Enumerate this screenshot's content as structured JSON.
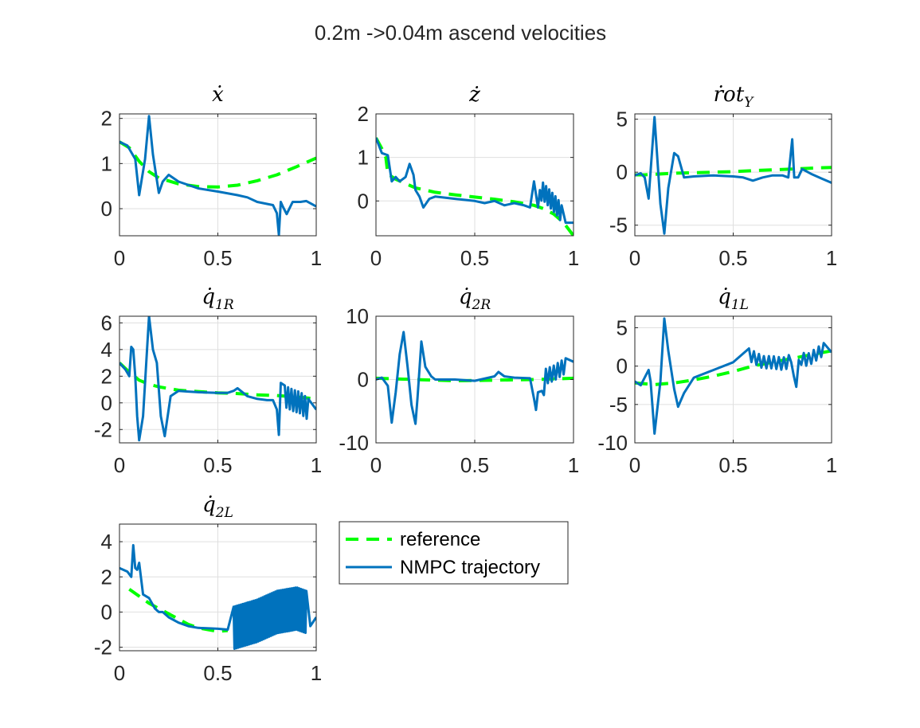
{
  "figure_title": "0.2m ->0.04m ascend velocities",
  "colors": {
    "reference": "#00FF00",
    "nmpc": "#0072BD",
    "axis": "#262626",
    "grid": "#DFDFDF"
  },
  "legend": {
    "reference": "reference",
    "nmpc": "NMPC trajectory"
  },
  "chart_data": [
    {
      "type": "line",
      "title_base": "ẋ",
      "title_sub": "",
      "xlim": [
        0,
        1
      ],
      "ylim": [
        -0.6,
        2.1
      ],
      "xticks": [
        0,
        0.5,
        1
      ],
      "xtick_labels": [
        "0",
        "0.5",
        "1"
      ],
      "yticks": [
        0,
        1,
        2
      ],
      "ytick_labels": [
        "0",
        "1",
        "2"
      ],
      "grid": true,
      "series": [
        {
          "name": "reference",
          "style": "dashed",
          "noise": null,
          "x": [
            0,
            0.05,
            0.1,
            0.15,
            0.2,
            0.3,
            0.4,
            0.5,
            0.6,
            0.7,
            0.8,
            0.9,
            1.0
          ],
          "y": [
            1.48,
            1.35,
            1.05,
            0.82,
            0.68,
            0.55,
            0.49,
            0.48,
            0.52,
            0.62,
            0.75,
            0.93,
            1.12
          ]
        },
        {
          "name": "NMPC trajectory",
          "style": "solid",
          "noise": null,
          "x": [
            0,
            0.04,
            0.08,
            0.1,
            0.13,
            0.15,
            0.17,
            0.2,
            0.22,
            0.25,
            0.3,
            0.4,
            0.5,
            0.6,
            0.65,
            0.7,
            0.78,
            0.8,
            0.81,
            0.82,
            0.83,
            0.85,
            0.88,
            0.92,
            0.95,
            1.0
          ],
          "y": [
            1.48,
            1.4,
            1.1,
            0.3,
            1.1,
            2.05,
            1.2,
            0.35,
            0.6,
            0.75,
            0.6,
            0.45,
            0.38,
            0.3,
            0.25,
            0.15,
            0.08,
            -0.1,
            -0.58,
            0.15,
            0.05,
            -0.12,
            0.15,
            0.15,
            0.17,
            0.05
          ]
        }
      ]
    },
    {
      "type": "line",
      "title_base": "ż",
      "title_sub": "",
      "xlim": [
        0,
        1
      ],
      "ylim": [
        -0.8,
        2.0
      ],
      "xticks": [
        0,
        0.5,
        1
      ],
      "xtick_labels": [
        "0",
        "0.5",
        "1"
      ],
      "yticks": [
        0,
        1,
        2
      ],
      "ytick_labels": [
        "0",
        "1",
        "2"
      ],
      "grid": true,
      "series": [
        {
          "name": "reference",
          "style": "dashed",
          "noise": null,
          "x": [
            0,
            0.03,
            0.05,
            0.06,
            0.1,
            0.2,
            0.3,
            0.4,
            0.5,
            0.6,
            0.7,
            0.8,
            0.85,
            0.9,
            0.95,
            1.0
          ],
          "y": [
            1.45,
            1.2,
            1.0,
            0.62,
            0.5,
            0.3,
            0.2,
            0.14,
            0.09,
            0.04,
            -0.02,
            -0.1,
            -0.18,
            -0.3,
            -0.5,
            -0.8
          ]
        },
        {
          "name": "NMPC trajectory",
          "style": "solid",
          "noise": {
            "x_start": 0.83,
            "x_end": 0.94,
            "amplitude": 0.2,
            "steps": 14
          },
          "x": [
            0,
            0.03,
            0.06,
            0.08,
            0.1,
            0.12,
            0.15,
            0.17,
            0.19,
            0.2,
            0.22,
            0.24,
            0.27,
            0.3,
            0.4,
            0.5,
            0.55,
            0.6,
            0.65,
            0.7,
            0.75,
            0.78,
            0.8,
            0.82,
            0.84,
            0.87,
            0.9,
            0.92,
            0.94,
            0.96,
            1.0
          ],
          "y": [
            1.45,
            1.1,
            1.05,
            0.45,
            0.55,
            0.45,
            0.55,
            0.85,
            0.6,
            0.25,
            0.1,
            -0.15,
            0.05,
            0.1,
            0.05,
            0.0,
            -0.05,
            0.0,
            -0.1,
            -0.05,
            -0.1,
            -0.15,
            0.45,
            -0.15,
            0.25,
            0.1,
            -0.05,
            -0.15,
            -0.3,
            -0.5,
            -0.5
          ]
        }
      ]
    },
    {
      "type": "line",
      "title_base": "ṙot",
      "title_sub": "Y",
      "xlim": [
        0,
        1
      ],
      "ylim": [
        -6,
        5.5
      ],
      "xticks": [
        0,
        0.5,
        1
      ],
      "xtick_labels": [
        "0",
        "0.5",
        "1"
      ],
      "yticks": [
        -5,
        0,
        5
      ],
      "ytick_labels": [
        "-5",
        "0",
        "5"
      ],
      "grid": true,
      "series": [
        {
          "name": "reference",
          "style": "dashed",
          "noise": null,
          "x": [
            0,
            0.05,
            0.1,
            0.2,
            0.3,
            0.4,
            0.5,
            0.6,
            0.7,
            0.8,
            0.9,
            1.0
          ],
          "y": [
            -0.25,
            -0.25,
            -0.2,
            -0.1,
            -0.05,
            0.0,
            0.05,
            0.15,
            0.22,
            0.3,
            0.38,
            0.45
          ]
        },
        {
          "name": "NMPC trajectory",
          "style": "solid",
          "noise": null,
          "x": [
            0,
            0.03,
            0.05,
            0.07,
            0.1,
            0.13,
            0.15,
            0.17,
            0.2,
            0.22,
            0.25,
            0.3,
            0.4,
            0.5,
            0.55,
            0.6,
            0.65,
            0.7,
            0.75,
            0.78,
            0.8,
            0.81,
            0.83,
            0.85,
            0.9,
            0.95,
            1.0
          ],
          "y": [
            -0.3,
            -0.1,
            -0.5,
            -2.5,
            5.2,
            -3.0,
            -5.8,
            -1.5,
            1.8,
            1.5,
            -0.5,
            -0.4,
            -0.3,
            -0.4,
            -0.5,
            -0.8,
            -0.5,
            -0.3,
            -0.3,
            -0.5,
            3.1,
            -0.5,
            -0.5,
            0.3,
            -0.2,
            -0.6,
            -1.0
          ]
        }
      ]
    },
    {
      "type": "line",
      "title_base": "q̇",
      "title_sub": "1R",
      "xlim": [
        0,
        1
      ],
      "ylim": [
        -3,
        6.5
      ],
      "xticks": [
        0,
        0.5,
        1
      ],
      "xtick_labels": [
        "0",
        "0.5",
        "1"
      ],
      "yticks": [
        -2,
        0,
        2,
        4,
        6
      ],
      "ytick_labels": [
        "-2",
        "0",
        "2",
        "4",
        "6"
      ],
      "grid": true,
      "series": [
        {
          "name": "reference",
          "style": "dashed",
          "noise": null,
          "x": [
            0,
            0.05,
            0.1,
            0.15,
            0.2,
            0.3,
            0.4,
            0.5,
            0.6,
            0.7,
            0.8,
            0.9,
            1.0
          ],
          "y": [
            3.0,
            2.3,
            1.7,
            1.4,
            1.2,
            0.95,
            0.85,
            0.75,
            0.7,
            0.6,
            0.55,
            0.45,
            0.3
          ]
        },
        {
          "name": "NMPC trajectory",
          "style": "solid",
          "noise": {
            "x_start": 0.84,
            "x_end": 0.96,
            "amplitude": 0.8,
            "steps": 14
          },
          "x": [
            0,
            0.03,
            0.05,
            0.06,
            0.07,
            0.08,
            0.09,
            0.1,
            0.12,
            0.15,
            0.17,
            0.19,
            0.21,
            0.23,
            0.26,
            0.3,
            0.35,
            0.4,
            0.5,
            0.55,
            0.58,
            0.6,
            0.65,
            0.7,
            0.75,
            0.78,
            0.8,
            0.81,
            0.82,
            0.84,
            0.88,
            0.92,
            0.96,
            1.0
          ],
          "y": [
            3.0,
            2.5,
            2.0,
            4.2,
            4.0,
            2.0,
            -1.0,
            -2.8,
            -1.0,
            6.5,
            4.0,
            3.0,
            -1.0,
            -2.5,
            0.5,
            0.9,
            0.85,
            0.8,
            0.75,
            0.75,
            0.9,
            1.1,
            0.5,
            0.3,
            0.2,
            0.2,
            -0.5,
            -2.4,
            1.5,
            0.5,
            0.2,
            0.0,
            -0.5,
            -0.5
          ]
        }
      ]
    },
    {
      "type": "line",
      "title_base": "q̇",
      "title_sub": "2R",
      "xlim": [
        0,
        1
      ],
      "ylim": [
        -10,
        10
      ],
      "xticks": [
        0,
        0.5,
        1
      ],
      "xtick_labels": [
        "0",
        "0.5",
        "1"
      ],
      "yticks": [
        -10,
        0,
        10
      ],
      "ytick_labels": [
        "-10",
        "0",
        "10"
      ],
      "grid": true,
      "series": [
        {
          "name": "reference",
          "style": "dashed",
          "noise": null,
          "x": [
            0,
            0.2,
            0.4,
            0.6,
            0.8,
            1.0
          ],
          "y": [
            0.2,
            0.0,
            -0.2,
            -0.1,
            0.0,
            0.2
          ]
        },
        {
          "name": "NMPC trajectory",
          "style": "solid",
          "noise": {
            "x_start": 0.84,
            "x_end": 0.96,
            "amplitude": 1.2,
            "steps": 12
          },
          "x": [
            0,
            0.03,
            0.06,
            0.08,
            0.1,
            0.12,
            0.14,
            0.16,
            0.18,
            0.2,
            0.21,
            0.23,
            0.25,
            0.28,
            0.3,
            0.4,
            0.5,
            0.6,
            0.62,
            0.65,
            0.7,
            0.78,
            0.8,
            0.81,
            0.82,
            0.84,
            0.86,
            0.9,
            0.95,
            1.0
          ],
          "y": [
            0.0,
            0.3,
            -1.0,
            -6.8,
            -2.0,
            4.0,
            7.5,
            2.0,
            -4.0,
            -7.0,
            -3.0,
            6.0,
            2.0,
            0.5,
            0.0,
            0.0,
            -0.2,
            0.5,
            1.2,
            0.5,
            0.3,
            0.2,
            -3.0,
            -4.8,
            -2.0,
            -3.0,
            0.5,
            1.0,
            2.0,
            2.8
          ]
        }
      ]
    },
    {
      "type": "line",
      "title_base": "q̇",
      "title_sub": "1L",
      "xlim": [
        0,
        1
      ],
      "ylim": [
        -10,
        6.5
      ],
      "xticks": [
        0,
        0.5,
        1
      ],
      "xtick_labels": [
        "0",
        "0.5",
        "1"
      ],
      "yticks": [
        -10,
        -5,
        0,
        5
      ],
      "ytick_labels": [
        "-10",
        "-5",
        "0",
        "5"
      ],
      "grid": true,
      "series": [
        {
          "name": "reference",
          "style": "dashed",
          "noise": null,
          "x": [
            0,
            0.1,
            0.2,
            0.3,
            0.4,
            0.5,
            0.6,
            0.7,
            0.8,
            0.9,
            1.0
          ],
          "y": [
            -2.2,
            -2.4,
            -2.2,
            -1.8,
            -1.3,
            -0.7,
            0.0,
            0.5,
            1.0,
            1.5,
            2.0
          ]
        },
        {
          "name": "NMPC trajectory",
          "style": "solid",
          "noise": {
            "x_start": 0.58,
            "x_end": 0.96,
            "amplitude": 0.8,
            "steps": 30
          },
          "x": [
            0,
            0.03,
            0.06,
            0.07,
            0.08,
            0.1,
            0.13,
            0.15,
            0.17,
            0.2,
            0.22,
            0.25,
            0.3,
            0.4,
            0.5,
            0.58,
            0.65,
            0.7,
            0.75,
            0.78,
            0.8,
            0.81,
            0.82,
            0.84,
            0.88,
            0.92,
            0.96,
            1.0
          ],
          "y": [
            -2.0,
            -2.5,
            -1.0,
            -0.5,
            -2.0,
            -8.8,
            -2.0,
            6.2,
            2.0,
            -3.0,
            -5.3,
            -3.5,
            -1.5,
            -0.5,
            0.5,
            1.5,
            0.5,
            0.5,
            0.3,
            0.5,
            1.5,
            -3.0,
            -2.0,
            1.0,
            0.8,
            1.5,
            2.2,
            1.8
          ]
        }
      ]
    },
    {
      "type": "line",
      "title_base": "q̇",
      "title_sub": "2L",
      "xlim": [
        0,
        1
      ],
      "ylim": [
        -2.2,
        5
      ],
      "xticks": [
        0,
        0.5,
        1
      ],
      "xtick_labels": [
        "0",
        "0.5",
        "1"
      ],
      "yticks": [
        -2,
        0,
        2,
        4
      ],
      "ytick_labels": [
        "-2",
        "0",
        "2",
        "4"
      ],
      "grid": true,
      "series": [
        {
          "name": "reference",
          "style": "dashed",
          "noise": null,
          "x": [
            0.05,
            0.1,
            0.15,
            0.2,
            0.25,
            0.3,
            0.35,
            0.4,
            0.45,
            0.5,
            0.55
          ],
          "y": [
            1.3,
            0.9,
            0.5,
            0.2,
            -0.1,
            -0.4,
            -0.7,
            -0.9,
            -1.0,
            -1.1,
            -1.05
          ]
        },
        {
          "name": "NMPC trajectory",
          "style": "solid",
          "noise": {
            "x_start": 0.58,
            "x_end": 0.95,
            "amplitude": 1.2,
            "steps": 80
          },
          "x": [
            0,
            0.04,
            0.06,
            0.07,
            0.08,
            0.09,
            0.1,
            0.12,
            0.15,
            0.18,
            0.2,
            0.22,
            0.25,
            0.3,
            0.35,
            0.4,
            0.5,
            0.55,
            0.58,
            0.7,
            0.8,
            0.9,
            0.95,
            0.97,
            1.0
          ],
          "y": [
            2.5,
            2.3,
            2.0,
            3.8,
            2.5,
            2.4,
            2.8,
            1.0,
            0.8,
            0.2,
            0.0,
            0.0,
            -0.3,
            -0.6,
            -0.8,
            -0.9,
            -0.95,
            -1.0,
            -0.9,
            -0.5,
            0.0,
            0.2,
            0.0,
            -0.8,
            -0.3
          ]
        }
      ]
    }
  ]
}
